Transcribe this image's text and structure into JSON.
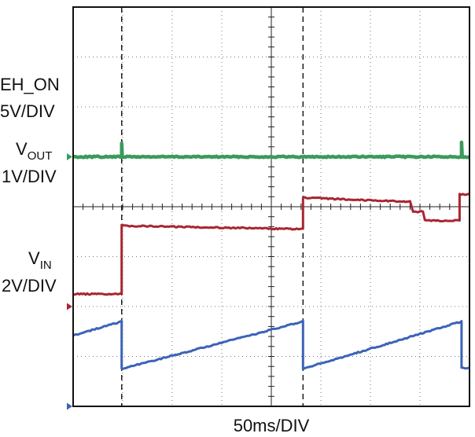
{
  "chart_data": {
    "type": "line",
    "title": "",
    "xlabel": "50ms/DIV",
    "grid": true,
    "divisions": {
      "x": 8,
      "y": 8
    },
    "x_range_ms": [
      0,
      400
    ],
    "dashed_markers_ms": [
      49,
      232
    ],
    "series": [
      {
        "name": "EH_ON",
        "name_main": "EH_ON",
        "name_sub": "",
        "scale": "5V/DIV",
        "color": "#3a9a5a",
        "offset_div": 5.0,
        "points_div": [
          [
            0,
            5.0
          ],
          [
            49,
            5.0
          ],
          [
            49,
            5.28
          ],
          [
            49.6,
            5.0
          ],
          [
            392,
            5.0
          ],
          [
            392,
            5.3
          ],
          [
            392.6,
            5.0
          ],
          [
            400,
            5.0
          ]
        ]
      },
      {
        "name": "VOUT",
        "name_main": "V",
        "name_sub": "OUT",
        "scale": "1V/DIV",
        "color": "#a82630",
        "offset_div": 2.0,
        "points_div": [
          [
            0,
            2.25
          ],
          [
            49,
            2.25
          ],
          [
            49,
            3.62
          ],
          [
            232,
            3.55
          ],
          [
            232,
            4.18
          ],
          [
            340,
            4.1
          ],
          [
            343,
            3.9
          ],
          [
            353,
            3.9
          ],
          [
            355,
            3.72
          ],
          [
            390,
            3.72
          ],
          [
            390,
            4.25
          ],
          [
            400,
            4.25
          ]
        ]
      },
      {
        "name": "VIN",
        "name_main": "V",
        "name_sub": "IN",
        "scale": "2V/DIV",
        "color": "#3c63b8",
        "offset_div": 0.0,
        "points_div": [
          [
            0,
            1.42
          ],
          [
            49,
            1.7
          ],
          [
            49,
            0.75
          ],
          [
            232,
            1.7
          ],
          [
            232,
            0.75
          ],
          [
            392,
            1.7
          ],
          [
            392,
            0.77
          ],
          [
            400,
            0.77
          ]
        ]
      }
    ]
  }
}
